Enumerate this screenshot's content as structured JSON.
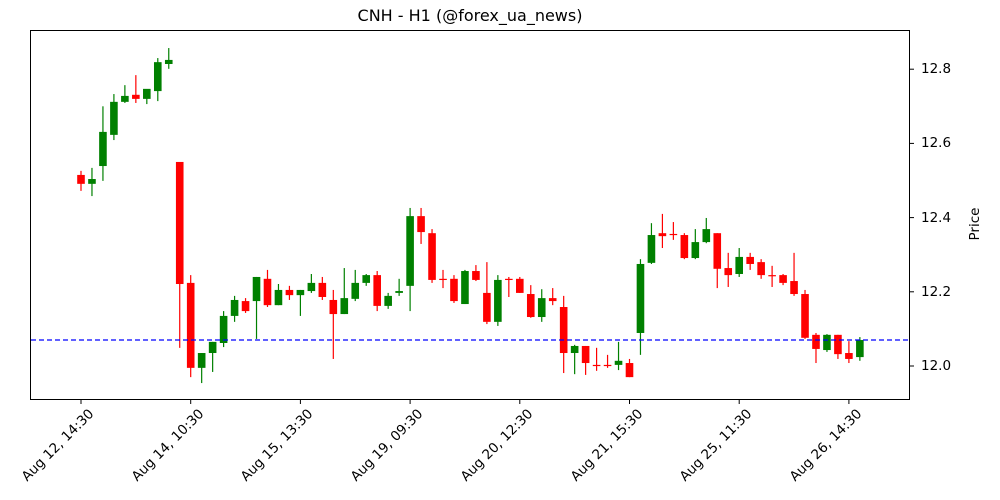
{
  "chart_data": {
    "type": "candlestick",
    "title": "CNH - H1 (@forex_ua_news)",
    "xlabel": "",
    "ylabel": "Price",
    "ylim": [
      11.91,
      12.91
    ],
    "y_ticks": [
      "12.0",
      "12.2",
      "12.4",
      "12.6",
      "12.8"
    ],
    "y_tick_values": [
      12.0,
      12.2,
      12.4,
      12.6,
      12.8
    ],
    "x_ticks": [
      "Aug 12, 14:30",
      "Aug 14, 10:30",
      "Aug 15, 13:30",
      "Aug 19, 09:30",
      "Aug 20, 12:30",
      "Aug 21, 15:30",
      "Aug 25, 11:30",
      "Aug 26, 14:30"
    ],
    "x_tick_indices": [
      0,
      10,
      20,
      30,
      40,
      50,
      60,
      70
    ],
    "grid": false,
    "hline": {
      "value": 12.07,
      "color": "#0000ff",
      "style": "dashed"
    },
    "colors": {
      "up": "#008000",
      "down": "#ff0000"
    },
    "candles": [
      {
        "o": 12.515,
        "h": 12.526,
        "l": 12.472,
        "c": 12.491
      },
      {
        "o": 12.491,
        "h": 12.534,
        "l": 12.458,
        "c": 12.504
      },
      {
        "o": 12.539,
        "h": 12.7,
        "l": 12.499,
        "c": 12.631
      },
      {
        "o": 12.623,
        "h": 12.733,
        "l": 12.609,
        "c": 12.712
      },
      {
        "o": 12.712,
        "h": 12.757,
        "l": 12.709,
        "c": 12.728
      },
      {
        "o": 12.731,
        "h": 12.784,
        "l": 12.709,
        "c": 12.72
      },
      {
        "o": 12.72,
        "h": 12.728,
        "l": 12.706,
        "c": 12.747
      },
      {
        "o": 12.741,
        "h": 12.83,
        "l": 12.714,
        "c": 12.819
      },
      {
        "o": 12.814,
        "h": 12.857,
        "l": 12.801,
        "c": 12.825
      },
      {
        "o": 12.55,
        "h": 12.55,
        "l": 12.049,
        "c": 12.221
      },
      {
        "o": 12.224,
        "h": 12.245,
        "l": 11.97,
        "c": 11.995
      },
      {
        "o": 11.995,
        "h": 12.035,
        "l": 11.954,
        "c": 12.035
      },
      {
        "o": 12.035,
        "h": 12.065,
        "l": 11.984,
        "c": 12.065
      },
      {
        "o": 12.062,
        "h": 12.148,
        "l": 12.051,
        "c": 12.135
      },
      {
        "o": 12.135,
        "h": 12.189,
        "l": 12.119,
        "c": 12.178
      },
      {
        "o": 12.175,
        "h": 12.183,
        "l": 12.143,
        "c": 12.148
      },
      {
        "o": 12.175,
        "h": 12.24,
        "l": 12.073,
        "c": 12.24
      },
      {
        "o": 12.235,
        "h": 12.259,
        "l": 12.159,
        "c": 12.164
      },
      {
        "o": 12.164,
        "h": 12.221,
        "l": 12.164,
        "c": 12.205
      },
      {
        "o": 12.205,
        "h": 12.216,
        "l": 12.178,
        "c": 12.191
      },
      {
        "o": 12.191,
        "h": 12.205,
        "l": 12.135,
        "c": 12.205
      },
      {
        "o": 12.202,
        "h": 12.248,
        "l": 12.197,
        "c": 12.224
      },
      {
        "o": 12.224,
        "h": 12.24,
        "l": 12.178,
        "c": 12.186
      },
      {
        "o": 12.178,
        "h": 12.205,
        "l": 12.019,
        "c": 12.14
      },
      {
        "o": 12.14,
        "h": 12.264,
        "l": 12.14,
        "c": 12.183
      },
      {
        "o": 12.181,
        "h": 12.259,
        "l": 12.175,
        "c": 12.224
      },
      {
        "o": 12.224,
        "h": 12.248,
        "l": 12.216,
        "c": 12.245
      },
      {
        "o": 12.245,
        "h": 12.256,
        "l": 12.148,
        "c": 12.162
      },
      {
        "o": 12.162,
        "h": 12.197,
        "l": 12.154,
        "c": 12.189
      },
      {
        "o": 12.197,
        "h": 12.235,
        "l": 12.189,
        "c": 12.202
      },
      {
        "o": 12.216,
        "h": 12.426,
        "l": 12.148,
        "c": 12.404
      },
      {
        "o": 12.404,
        "h": 12.426,
        "l": 12.329,
        "c": 12.361
      },
      {
        "o": 12.358,
        "h": 12.369,
        "l": 12.224,
        "c": 12.232
      },
      {
        "o": 12.235,
        "h": 12.259,
        "l": 12.21,
        "c": 12.232
      },
      {
        "o": 12.235,
        "h": 12.245,
        "l": 12.17,
        "c": 12.175
      },
      {
        "o": 12.167,
        "h": 12.259,
        "l": 12.167,
        "c": 12.256
      },
      {
        "o": 12.256,
        "h": 12.272,
        "l": 12.229,
        "c": 12.232
      },
      {
        "o": 12.197,
        "h": 12.28,
        "l": 12.113,
        "c": 12.119
      },
      {
        "o": 12.119,
        "h": 12.245,
        "l": 12.108,
        "c": 12.232
      },
      {
        "o": 12.235,
        "h": 12.24,
        "l": 12.186,
        "c": 12.232
      },
      {
        "o": 12.235,
        "h": 12.24,
        "l": 12.197,
        "c": 12.197
      },
      {
        "o": 12.194,
        "h": 12.218,
        "l": 12.13,
        "c": 12.132
      },
      {
        "o": 12.132,
        "h": 12.207,
        "l": 12.119,
        "c": 12.183
      },
      {
        "o": 12.183,
        "h": 12.21,
        "l": 12.164,
        "c": 12.175
      },
      {
        "o": 12.159,
        "h": 12.189,
        "l": 11.981,
        "c": 12.035
      },
      {
        "o": 12.035,
        "h": 12.057,
        "l": 11.978,
        "c": 12.054
      },
      {
        "o": 12.054,
        "h": 12.054,
        "l": 11.976,
        "c": 12.008
      },
      {
        "o": 12.003,
        "h": 12.049,
        "l": 11.987,
        "c": 12.0
      },
      {
        "o": 12.003,
        "h": 12.03,
        "l": 11.995,
        "c": 12.0
      },
      {
        "o": 12.003,
        "h": 12.065,
        "l": 11.989,
        "c": 12.014
      },
      {
        "o": 12.008,
        "h": 12.019,
        "l": 11.97,
        "c": 11.97
      },
      {
        "o": 12.089,
        "h": 12.288,
        "l": 12.03,
        "c": 12.275
      },
      {
        "o": 12.278,
        "h": 12.385,
        "l": 12.275,
        "c": 12.353
      },
      {
        "o": 12.358,
        "h": 12.41,
        "l": 12.318,
        "c": 12.35
      },
      {
        "o": 12.356,
        "h": 12.388,
        "l": 12.34,
        "c": 12.353
      },
      {
        "o": 12.353,
        "h": 12.358,
        "l": 12.288,
        "c": 12.291
      },
      {
        "o": 12.291,
        "h": 12.369,
        "l": 12.288,
        "c": 12.334
      },
      {
        "o": 12.334,
        "h": 12.399,
        "l": 12.331,
        "c": 12.369
      },
      {
        "o": 12.358,
        "h": 12.358,
        "l": 12.21,
        "c": 12.262
      },
      {
        "o": 12.264,
        "h": 12.305,
        "l": 12.213,
        "c": 12.245
      },
      {
        "o": 12.248,
        "h": 12.318,
        "l": 12.24,
        "c": 12.294
      },
      {
        "o": 12.294,
        "h": 12.305,
        "l": 12.259,
        "c": 12.275
      },
      {
        "o": 12.28,
        "h": 12.288,
        "l": 12.235,
        "c": 12.245
      },
      {
        "o": 12.245,
        "h": 12.27,
        "l": 12.213,
        "c": 12.243
      },
      {
        "o": 12.245,
        "h": 12.248,
        "l": 12.218,
        "c": 12.224
      },
      {
        "o": 12.229,
        "h": 12.305,
        "l": 12.189,
        "c": 12.194
      },
      {
        "o": 12.194,
        "h": 12.205,
        "l": 12.073,
        "c": 12.076
      },
      {
        "o": 12.084,
        "h": 12.089,
        "l": 12.008,
        "c": 12.046
      },
      {
        "o": 12.043,
        "h": 12.086,
        "l": 12.038,
        "c": 12.084
      },
      {
        "o": 12.084,
        "h": 12.084,
        "l": 12.019,
        "c": 12.032
      },
      {
        "o": 12.035,
        "h": 12.067,
        "l": 12.008,
        "c": 12.019
      },
      {
        "o": 12.024,
        "h": 12.078,
        "l": 12.014,
        "c": 12.07
      }
    ]
  }
}
